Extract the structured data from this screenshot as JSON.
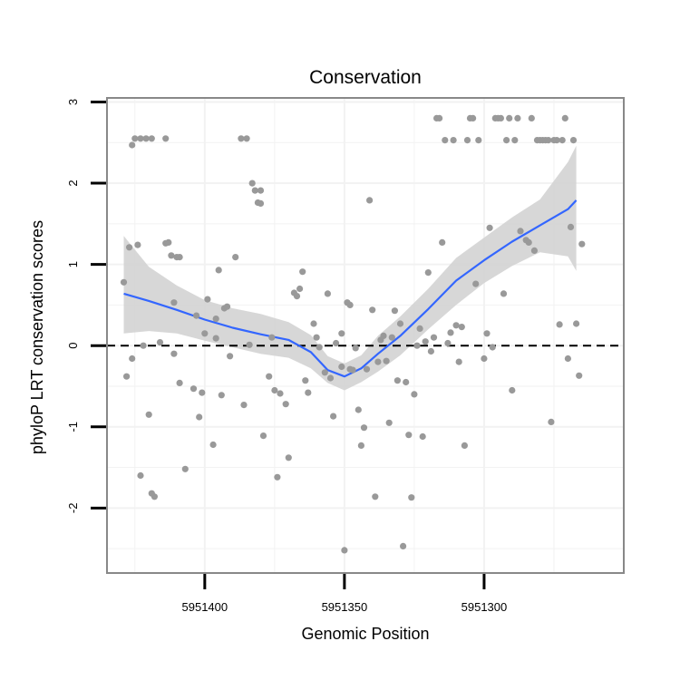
{
  "chart_data": {
    "type": "scatter",
    "title": "Conservation",
    "xlabel": "Genomic Position",
    "ylabel": "phyloP LRT conservation scores",
    "x_reversed": true,
    "xlim": [
      5951435,
      5951250
    ],
    "ylim": [
      -2.8,
      3.05
    ],
    "x_ticks": [
      5951400,
      5951350,
      5951300
    ],
    "y_ticks": [
      3,
      2,
      1,
      0,
      -1,
      -2
    ],
    "grid": true,
    "reference_line": {
      "y": 0,
      "style": "dashed"
    },
    "colors": {
      "points": "#999999",
      "smooth_line": "#3366FF",
      "ribbon": "#D3D3D3",
      "panel_border": "#888888",
      "grid": "#F2F2F2"
    },
    "points": [
      [
        5951425,
        2.55
      ],
      [
        5951423,
        2.55
      ],
      [
        5951421,
        2.55
      ],
      [
        5951419,
        2.55
      ],
      [
        5951414,
        2.55
      ],
      [
        5951426,
        2.47
      ],
      [
        5951424,
        1.24
      ],
      [
        5951427,
        1.21
      ],
      [
        5951429,
        0.78
      ],
      [
        5951428,
        -0.38
      ],
      [
        5951426,
        -0.16
      ],
      [
        5951422,
        0.0
      ],
      [
        5951420,
        -0.85
      ],
      [
        5951423,
        -1.6
      ],
      [
        5951419,
        -1.82
      ],
      [
        5951418,
        -1.86
      ],
      [
        5951416,
        0.04
      ],
      [
        5951414,
        1.26
      ],
      [
        5951413,
        1.27
      ],
      [
        5951412,
        1.11
      ],
      [
        5951410,
        1.09
      ],
      [
        5951409,
        1.09
      ],
      [
        5951411,
        0.53
      ],
      [
        5951409,
        -0.46
      ],
      [
        5951411,
        -0.1
      ],
      [
        5951407,
        -1.52
      ],
      [
        5951404,
        -0.53
      ],
      [
        5951403,
        0.37
      ],
      [
        5951402,
        -0.88
      ],
      [
        5951401,
        -0.58
      ],
      [
        5951400,
        0.15
      ],
      [
        5951399,
        0.57
      ],
      [
        5951397,
        -1.22
      ],
      [
        5951396,
        0.33
      ],
      [
        5951396,
        0.09
      ],
      [
        5951395,
        0.93
      ],
      [
        5951394,
        -0.61
      ],
      [
        5951393,
        0.46
      ],
      [
        5951392,
        0.48
      ],
      [
        5951391,
        -0.13
      ],
      [
        5951389,
        1.09
      ],
      [
        5951387,
        2.55
      ],
      [
        5951385,
        2.55
      ],
      [
        5951386,
        -0.73
      ],
      [
        5951384,
        0.01
      ],
      [
        5951383,
        2.0
      ],
      [
        5951382,
        1.91
      ],
      [
        5951380,
        1.91
      ],
      [
        5951381,
        1.76
      ],
      [
        5951380,
        1.75
      ],
      [
        5951379,
        -1.11
      ],
      [
        5951377,
        -0.38
      ],
      [
        5951376,
        0.1
      ],
      [
        5951375,
        -0.55
      ],
      [
        5951374,
        -1.62
      ],
      [
        5951373,
        -0.59
      ],
      [
        5951371,
        -0.72
      ],
      [
        5951370,
        -1.38
      ],
      [
        5951368,
        0.65
      ],
      [
        5951367,
        0.61
      ],
      [
        5951366,
        0.7
      ],
      [
        5951365,
        0.91
      ],
      [
        5951364,
        -0.43
      ],
      [
        5951363,
        -0.58
      ],
      [
        5951361,
        0.27
      ],
      [
        5951360,
        0.1
      ],
      [
        5951359,
        -0.02
      ],
      [
        5951357,
        -0.33
      ],
      [
        5951356,
        0.64
      ],
      [
        5951355,
        -0.4
      ],
      [
        5951354,
        -0.87
      ],
      [
        5951353,
        0.03
      ],
      [
        5951351,
        -0.26
      ],
      [
        5951350,
        -2.52
      ],
      [
        5951351,
        0.15
      ],
      [
        5951349,
        0.53
      ],
      [
        5951348,
        0.5
      ],
      [
        5951348,
        -0.29
      ],
      [
        5951347,
        -0.3
      ],
      [
        5951346,
        -0.03
      ],
      [
        5951345,
        -0.79
      ],
      [
        5951344,
        -1.23
      ],
      [
        5951343,
        -1.01
      ],
      [
        5951342,
        -0.29
      ],
      [
        5951341,
        1.79
      ],
      [
        5951340,
        0.44
      ],
      [
        5951339,
        -1.86
      ],
      [
        5951338,
        -0.2
      ],
      [
        5951337,
        0.07
      ],
      [
        5951336,
        0.12
      ],
      [
        5951335,
        -0.19
      ],
      [
        5951334,
        -0.95
      ],
      [
        5951333,
        0.1
      ],
      [
        5951332,
        0.43
      ],
      [
        5951331,
        -0.43
      ],
      [
        5951330,
        0.27
      ],
      [
        5951329,
        -2.47
      ],
      [
        5951328,
        -0.45
      ],
      [
        5951327,
        -1.1
      ],
      [
        5951326,
        -1.87
      ],
      [
        5951325,
        -0.6
      ],
      [
        5951324,
        0.0
      ],
      [
        5951323,
        0.21
      ],
      [
        5951322,
        -1.12
      ],
      [
        5951321,
        0.05
      ],
      [
        5951320,
        0.9
      ],
      [
        5951319,
        -0.07
      ],
      [
        5951318,
        0.1
      ],
      [
        5951317,
        2.8
      ],
      [
        5951316,
        2.8
      ],
      [
        5951315,
        1.27
      ],
      [
        5951314,
        2.53
      ],
      [
        5951313,
        0.03
      ],
      [
        5951312,
        0.16
      ],
      [
        5951311,
        2.53
      ],
      [
        5951310,
        0.25
      ],
      [
        5951309,
        -0.2
      ],
      [
        5951308,
        0.23
      ],
      [
        5951307,
        -1.23
      ],
      [
        5951306,
        2.53
      ],
      [
        5951305,
        2.8
      ],
      [
        5951304,
        2.8
      ],
      [
        5951303,
        0.76
      ],
      [
        5951302,
        2.53
      ],
      [
        5951300,
        -0.16
      ],
      [
        5951299,
        0.15
      ],
      [
        5951298,
        1.45
      ],
      [
        5951297,
        -0.02
      ],
      [
        5951296,
        2.8
      ],
      [
        5951295,
        2.8
      ],
      [
        5951294,
        2.8
      ],
      [
        5951293,
        0.64
      ],
      [
        5951292,
        2.53
      ],
      [
        5951291,
        2.8
      ],
      [
        5951290,
        -0.55
      ],
      [
        5951289,
        2.53
      ],
      [
        5951288,
        2.8
      ],
      [
        5951287,
        1.41
      ],
      [
        5951285,
        1.3
      ],
      [
        5951284,
        1.27
      ],
      [
        5951283,
        2.8
      ],
      [
        5951282,
        1.17
      ],
      [
        5951281,
        2.53
      ],
      [
        5951280,
        2.53
      ],
      [
        5951279,
        2.53
      ],
      [
        5951278,
        2.53
      ],
      [
        5951277,
        2.53
      ],
      [
        5951276,
        -0.94
      ],
      [
        5951275,
        2.53
      ],
      [
        5951274,
        2.53
      ],
      [
        5951273,
        0.26
      ],
      [
        5951272,
        2.53
      ],
      [
        5951271,
        2.8
      ],
      [
        5951270,
        -0.16
      ],
      [
        5951269,
        1.46
      ],
      [
        5951268,
        2.53
      ],
      [
        5951267,
        0.27
      ],
      [
        5951266,
        -0.37
      ],
      [
        5951265,
        1.25
      ]
    ],
    "smooth_fit": {
      "x": [
        5951429,
        5951420,
        5951410,
        5951400,
        5951390,
        5951380,
        5951370,
        5951362,
        5951356,
        5951350,
        5951344,
        5951338,
        5951330,
        5951320,
        5951310,
        5951300,
        5951290,
        5951280,
        5951270,
        5951267
      ],
      "y": [
        0.64,
        0.55,
        0.44,
        0.32,
        0.22,
        0.14,
        0.07,
        -0.08,
        -0.3,
        -0.38,
        -0.28,
        -0.1,
        0.12,
        0.45,
        0.8,
        1.05,
        1.28,
        1.48,
        1.68,
        1.79
      ],
      "lo": [
        0.15,
        0.18,
        0.15,
        0.06,
        -0.02,
        -0.1,
        -0.15,
        -0.28,
        -0.46,
        -0.55,
        -0.45,
        -0.32,
        -0.12,
        0.2,
        0.5,
        0.77,
        0.98,
        1.15,
        1.1,
        0.92
      ],
      "hi": [
        1.35,
        0.97,
        0.74,
        0.56,
        0.46,
        0.39,
        0.29,
        0.13,
        -0.13,
        -0.22,
        -0.12,
        0.12,
        0.36,
        0.7,
        1.08,
        1.33,
        1.58,
        1.8,
        2.26,
        2.46
      ]
    }
  }
}
